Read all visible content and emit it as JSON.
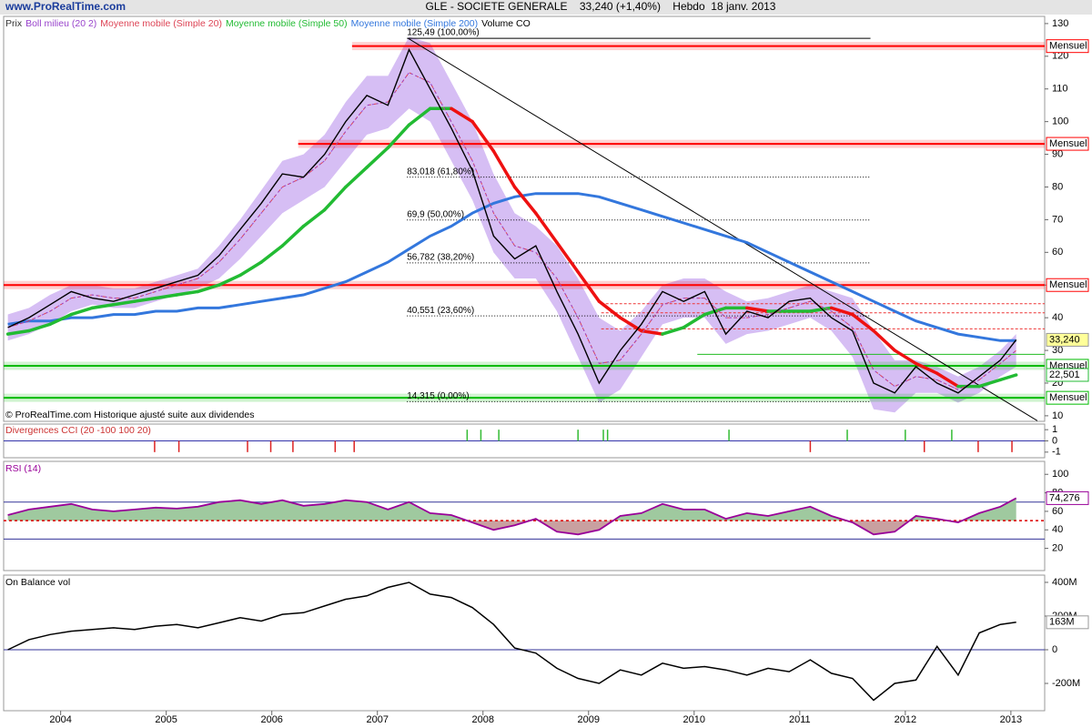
{
  "header": {
    "site": "www.ProRealTime.com",
    "title": "GLE - SOCIETE GENERALE    33,240 (+1,40%)    Hebdo  18 janv. 2013"
  },
  "chart_data": [
    {
      "type": "line",
      "volume_label": "Volume CO",
      "note": "© ProRealTime.com Historique ajusté suite aux dividendes",
      "xlim": [
        2003.46,
        2013.32
      ],
      "ylim": [
        8.3,
        132.2
      ],
      "yticks": [
        10,
        20,
        30,
        40,
        50,
        60,
        70,
        80,
        90,
        100,
        110,
        120,
        130
      ],
      "x": [
        2003.5,
        2003.7,
        2003.9,
        2004.1,
        2004.3,
        2004.5,
        2004.7,
        2004.9,
        2005.1,
        2005.3,
        2005.5,
        2005.7,
        2005.9,
        2006.1,
        2006.3,
        2006.5,
        2006.7,
        2006.9,
        2007.1,
        2007.3,
        2007.5,
        2007.7,
        2007.9,
        2008.1,
        2008.3,
        2008.5,
        2008.7,
        2008.9,
        2009.1,
        2009.3,
        2009.5,
        2009.7,
        2009.9,
        2010.1,
        2010.3,
        2010.5,
        2010.7,
        2010.9,
        2011.1,
        2011.3,
        2011.5,
        2011.7,
        2011.9,
        2012.1,
        2012.3,
        2012.5,
        2012.7,
        2012.9,
        2013.05
      ],
      "series": [
        {
          "name": "Prix",
          "color": "#000000",
          "label_bg": "#ffff99",
          "values": [
            37,
            40,
            44,
            48,
            46,
            45,
            47,
            49,
            51,
            53,
            59,
            67,
            75,
            84,
            83,
            90,
            100,
            108,
            105,
            122,
            110,
            98,
            85,
            65,
            58,
            62,
            48,
            35,
            20,
            30,
            38,
            48,
            45,
            48,
            35,
            42,
            40,
            45,
            46,
            40,
            36,
            20,
            17,
            25,
            20,
            17,
            22,
            27,
            33.24
          ],
          "value_labels": [
            null,
            null,
            null,
            null,
            null,
            null,
            null,
            null,
            null,
            null,
            null,
            null,
            null,
            null,
            null,
            null,
            null,
            null,
            null,
            null,
            null,
            null,
            null,
            null,
            null,
            null,
            null,
            null,
            null,
            null,
            null,
            null,
            null,
            null,
            null,
            null,
            null,
            null,
            null,
            null,
            null,
            null,
            null,
            null,
            null,
            null,
            null,
            null,
            "33,240"
          ]
        },
        {
          "name": "Boll milieu (20 2)",
          "color": "#9944cc",
          "band_color": "#c8a8f0",
          "values": [
            37,
            39,
            42,
            46,
            47,
            46,
            46,
            48,
            50,
            52,
            57,
            64,
            72,
            80,
            83,
            88,
            97,
            105,
            106,
            115,
            112,
            100,
            88,
            72,
            62,
            60,
            52,
            40,
            26,
            27,
            35,
            44,
            46,
            46,
            40,
            40,
            41,
            43,
            45,
            42,
            37,
            24,
            19,
            22,
            21,
            18,
            21,
            26,
            30
          ],
          "upper": [
            41,
            43,
            47,
            50,
            50,
            49,
            49,
            51,
            53,
            55,
            62,
            70,
            79,
            88,
            90,
            96,
            106,
            114,
            114,
            126,
            124,
            112,
            100,
            84,
            72,
            68,
            62,
            52,
            40,
            36,
            42,
            50,
            52,
            52,
            48,
            45,
            46,
            48,
            50,
            48,
            46,
            36,
            27,
            27,
            25,
            22,
            25,
            30,
            35
          ],
          "lower": [
            33,
            35,
            38,
            42,
            44,
            43,
            43,
            45,
            47,
            49,
            52,
            58,
            65,
            72,
            76,
            80,
            88,
            96,
            98,
            104,
            100,
            88,
            76,
            60,
            52,
            52,
            42,
            28,
            14,
            18,
            28,
            38,
            40,
            40,
            32,
            35,
            36,
            38,
            40,
            36,
            28,
            12,
            11,
            17,
            17,
            14,
            17,
            22,
            25
          ]
        },
        {
          "name": "Moyenne mobile (Simple 20)",
          "color": "#dd4455",
          "values": [
            37,
            39,
            42,
            46,
            47,
            46,
            46,
            48,
            50,
            52,
            57,
            64,
            72,
            80,
            83,
            88,
            97,
            105,
            106,
            115,
            112,
            100,
            88,
            72,
            62,
            60,
            52,
            40,
            26,
            27,
            35,
            44,
            46,
            46,
            40,
            40,
            41,
            43,
            45,
            42,
            37,
            24,
            19,
            22,
            21,
            18,
            21,
            26,
            30
          ]
        },
        {
          "name": "Moyenne mobile (Simple 50)",
          "color": "#22bb33",
          "falling_color": "#ee1111",
          "label_bg": "#ffffff",
          "values": [
            35,
            36,
            38,
            41,
            43,
            44,
            45,
            46,
            47,
            48,
            50,
            53,
            57,
            62,
            68,
            73,
            80,
            86,
            92,
            99,
            104,
            104,
            100,
            91,
            80,
            72,
            63,
            54,
            45,
            40,
            36,
            35,
            37,
            41,
            43,
            43,
            42,
            42,
            42,
            43,
            41,
            36,
            30,
            26,
            23,
            19,
            19,
            21,
            22.501
          ],
          "value_labels": [
            null,
            null,
            null,
            null,
            null,
            null,
            null,
            null,
            null,
            null,
            null,
            null,
            null,
            null,
            null,
            null,
            null,
            null,
            null,
            null,
            null,
            null,
            null,
            null,
            null,
            null,
            null,
            null,
            null,
            null,
            null,
            null,
            null,
            null,
            null,
            null,
            null,
            null,
            null,
            null,
            null,
            null,
            null,
            null,
            null,
            null,
            null,
            null,
            "22,501"
          ]
        },
        {
          "name": "Moyenne mobile (Simple 200)",
          "color": "#3377dd",
          "values": [
            38,
            39,
            39,
            40,
            40,
            41,
            41,
            42,
            42,
            43,
            43,
            44,
            45,
            46,
            47,
            49,
            51,
            54,
            57,
            61,
            65,
            68,
            72,
            75,
            77,
            78,
            78,
            78,
            77,
            75,
            73,
            71,
            69,
            67,
            65,
            63,
            60,
            57,
            54,
            51,
            48,
            45,
            42,
            39,
            37,
            35,
            34,
            33,
            33
          ]
        }
      ],
      "fib_range": [
        2007.28,
        2011.67
      ],
      "fib_levels": [
        {
          "value": 125.49,
          "label": "125,49 (100,00%)"
        },
        {
          "value": 83.018,
          "label": "83,018 (61,80%)"
        },
        {
          "value": 69.9,
          "label": "69,9 (50,00%)"
        },
        {
          "value": 56.782,
          "label": "56,782 (38,20%)"
        },
        {
          "value": 40.551,
          "label": "40,551 (23,60%)"
        },
        {
          "value": 14.315,
          "label": "14,315 (0,00%)"
        }
      ],
      "levels": [
        {
          "value": 123.1,
          "label": "Mensuel",
          "color": "#ff0000",
          "from": 2006.76
        },
        {
          "value": 93.2,
          "label": "Mensuel",
          "color": "#ff0000",
          "from": 2006.25
        },
        {
          "value": 50,
          "label": "Mensuel",
          "color": "#ff0000",
          "from": 2003.46
        },
        {
          "value": 25.3,
          "label": "Mensuel",
          "color": "#00bb00",
          "from": 2003.46
        },
        {
          "value": 15.5,
          "label": "Mensuel",
          "color": "#00bb00",
          "from": 2003.46
        }
      ],
      "thin_levels": [
        {
          "value": 44.3,
          "from": 2009.12,
          "color": "#ee3333"
        },
        {
          "value": 41.5,
          "from": 2009.12,
          "color": "#ee3333"
        },
        {
          "value": 36.6,
          "from": 2009.12,
          "color": "#ee3333"
        },
        {
          "value": 28.8,
          "from": 2010.03,
          "color": "#22bb22"
        }
      ],
      "trendline": {
        "x": [
          2007.29,
          2013.25
        ],
        "y": [
          125.5,
          8.5
        ]
      }
    },
    {
      "type": "events",
      "title": "Divergences CCI (20 -100 100 20)",
      "xlim": [
        2003.46,
        2013.32
      ],
      "ylim": [
        -1.5,
        1.5
      ],
      "yticks": [
        1,
        0,
        -1
      ],
      "up_color": "#33bb33",
      "down_color": "#dd2222",
      "x": [
        2004.89,
        2005.12,
        2005.77,
        2005.99,
        2006.2,
        2006.6,
        2006.78,
        2007.85,
        2007.98,
        2008.15,
        2008.9,
        2009.14,
        2009.18,
        2010.33,
        2011.1,
        2011.45,
        2012.0,
        2012.18,
        2012.44,
        2012.69,
        2013.01
      ],
      "values": [
        -1,
        -1,
        -1,
        -1,
        -1,
        -1,
        -1,
        1,
        1,
        1,
        1,
        1,
        1,
        1,
        -1,
        1,
        1,
        -1,
        1,
        -1,
        -1
      ]
    },
    {
      "type": "line",
      "title": "RSI (14)",
      "xlim": [
        2003.46,
        2013.32
      ],
      "ylim": [
        -4,
        114
      ],
      "yticks": [
        20,
        40,
        60,
        80,
        100
      ],
      "levels": [
        70,
        30
      ],
      "midline": 50,
      "color": "#990099",
      "above_color": "#9fc99f",
      "below_color": "#c9a0a0",
      "x": [
        2003.5,
        2003.7,
        2003.9,
        2004.1,
        2004.3,
        2004.5,
        2004.7,
        2004.9,
        2005.1,
        2005.3,
        2005.5,
        2005.7,
        2005.9,
        2006.1,
        2006.3,
        2006.5,
        2006.7,
        2006.9,
        2007.1,
        2007.3,
        2007.5,
        2007.7,
        2007.9,
        2008.1,
        2008.3,
        2008.5,
        2008.7,
        2008.9,
        2009.1,
        2009.3,
        2009.5,
        2009.7,
        2009.9,
        2010.1,
        2010.3,
        2010.5,
        2010.7,
        2010.9,
        2011.1,
        2011.3,
        2011.5,
        2011.7,
        2011.9,
        2012.1,
        2012.3,
        2012.5,
        2012.7,
        2012.9,
        2013.05
      ],
      "values": [
        56,
        62,
        65,
        68,
        62,
        60,
        62,
        64,
        63,
        65,
        70,
        72,
        68,
        72,
        66,
        68,
        72,
        70,
        62,
        70,
        58,
        56,
        48,
        40,
        45,
        52,
        38,
        35,
        40,
        55,
        58,
        68,
        62,
        62,
        52,
        58,
        55,
        60,
        65,
        55,
        48,
        35,
        38,
        55,
        52,
        48,
        58,
        65,
        74.276
      ],
      "value_labels": [
        null,
        null,
        null,
        null,
        null,
        null,
        null,
        null,
        null,
        null,
        null,
        null,
        null,
        null,
        null,
        null,
        null,
        null,
        null,
        null,
        null,
        null,
        null,
        null,
        null,
        null,
        null,
        null,
        null,
        null,
        null,
        null,
        null,
        null,
        null,
        null,
        null,
        null,
        null,
        null,
        null,
        null,
        null,
        null,
        null,
        null,
        null,
        null,
        "74,276"
      ]
    },
    {
      "type": "line",
      "title": "On Balance vol",
      "xlim": [
        2003.46,
        2013.32
      ],
      "ylim": [
        -362000000,
        443000000
      ],
      "yticks": [
        {
          "value": 400000000,
          "label": "400M"
        },
        {
          "value": 200000000,
          "label": "200M"
        },
        0,
        {
          "value": -200000000,
          "label": "-200M"
        }
      ],
      "baseline": 0,
      "color": "#000000",
      "xticks": [
        2004,
        2005,
        2006,
        2007,
        2008,
        2009,
        2010,
        2011,
        2012,
        2013
      ],
      "x": [
        2003.5,
        2003.7,
        2003.9,
        2004.1,
        2004.3,
        2004.5,
        2004.7,
        2004.9,
        2005.1,
        2005.3,
        2005.5,
        2005.7,
        2005.9,
        2006.1,
        2006.3,
        2006.5,
        2006.7,
        2006.9,
        2007.1,
        2007.3,
        2007.5,
        2007.7,
        2007.9,
        2008.1,
        2008.3,
        2008.5,
        2008.7,
        2008.9,
        2009.1,
        2009.3,
        2009.5,
        2009.7,
        2009.9,
        2010.1,
        2010.3,
        2010.5,
        2010.7,
        2010.9,
        2011.1,
        2011.3,
        2011.5,
        2011.7,
        2011.9,
        2012.1,
        2012.3,
        2012.5,
        2012.7,
        2012.9,
        2013.05
      ],
      "values": [
        0,
        60000000,
        90000000,
        110000000,
        120000000,
        130000000,
        120000000,
        140000000,
        150000000,
        130000000,
        160000000,
        190000000,
        170000000,
        210000000,
        220000000,
        260000000,
        300000000,
        320000000,
        370000000,
        400000000,
        330000000,
        310000000,
        250000000,
        150000000,
        10000000,
        -20000000,
        -110000000,
        -170000000,
        -200000000,
        -120000000,
        -150000000,
        -80000000,
        -110000000,
        -100000000,
        -120000000,
        -150000000,
        -110000000,
        -130000000,
        -60000000,
        -140000000,
        -170000000,
        -300000000,
        -200000000,
        -180000000,
        20000000,
        -150000000,
        100000000,
        150000000,
        163000000
      ],
      "value_labels": [
        null,
        null,
        null,
        null,
        null,
        null,
        null,
        null,
        null,
        null,
        null,
        null,
        null,
        null,
        null,
        null,
        null,
        null,
        null,
        null,
        null,
        null,
        null,
        null,
        null,
        null,
        null,
        null,
        null,
        null,
        null,
        null,
        null,
        null,
        null,
        null,
        null,
        null,
        null,
        null,
        null,
        null,
        null,
        null,
        null,
        null,
        null,
        null,
        "163M"
      ]
    }
  ]
}
